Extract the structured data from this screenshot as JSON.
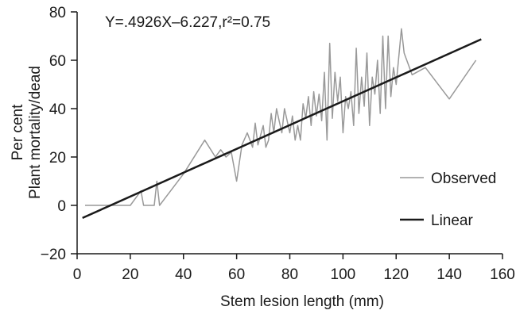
{
  "chart_data": {
    "type": "line",
    "title": "",
    "annotation_text": "Y=.4926X–6.227,r²=0.75",
    "xlabel": "Stem lesion length (mm)",
    "ylabel_line1": "Per cent",
    "ylabel_line2": "Plant mortality/dead",
    "xlim": [
      0,
      160
    ],
    "ylim": [
      -20,
      80
    ],
    "x_ticks": [
      0,
      20,
      40,
      60,
      80,
      100,
      120,
      140,
      160
    ],
    "y_ticks": [
      -20,
      0,
      20,
      40,
      60,
      80
    ],
    "x_tick_labels": [
      "0",
      "20",
      "40",
      "60",
      "80",
      "100",
      "120",
      "140",
      "160"
    ],
    "y_tick_labels": [
      "−20",
      "0",
      "20",
      "40",
      "60",
      "80"
    ],
    "legend_position": "right",
    "grid": false,
    "series": [
      {
        "name": "Observed",
        "color": "#999999",
        "x": [
          3,
          20,
          24,
          25,
          27,
          29,
          30,
          31,
          40,
          48,
          52,
          54,
          56,
          57,
          58,
          60,
          62,
          64,
          66,
          67,
          68,
          70,
          71,
          72,
          73,
          74,
          75,
          76,
          77,
          78,
          80,
          81,
          82,
          83,
          84,
          85,
          86,
          87,
          88,
          89,
          90,
          91,
          92,
          93,
          94,
          95,
          96,
          97,
          98,
          99,
          100,
          101,
          102,
          103,
          104,
          105,
          106,
          107,
          108,
          109,
          110,
          111,
          112,
          113,
          114,
          115,
          116,
          117,
          118,
          119,
          120,
          122,
          123,
          126,
          131,
          140,
          150
        ],
        "y": [
          0,
          0,
          6,
          0,
          0,
          0,
          10,
          0,
          13,
          27,
          20,
          23,
          20,
          21,
          22,
          10,
          25,
          30,
          24,
          34,
          25,
          33,
          24,
          27,
          38,
          30,
          40,
          35,
          30,
          40,
          30,
          37,
          27,
          33,
          27,
          42,
          36,
          45,
          33,
          47,
          37,
          46,
          35,
          55,
          27,
          67,
          36,
          55,
          43,
          53,
          30,
          45,
          40,
          47,
          33,
          65,
          38,
          53,
          41,
          63,
          33,
          53,
          46,
          60,
          38,
          70,
          40,
          70,
          45,
          57,
          50,
          73,
          63,
          54,
          57,
          44,
          60
        ]
      },
      {
        "name": "Linear",
        "color": "#1a1a1a",
        "x": [
          2,
          152
        ],
        "y": [
          -5.2,
          68.7
        ]
      }
    ]
  }
}
